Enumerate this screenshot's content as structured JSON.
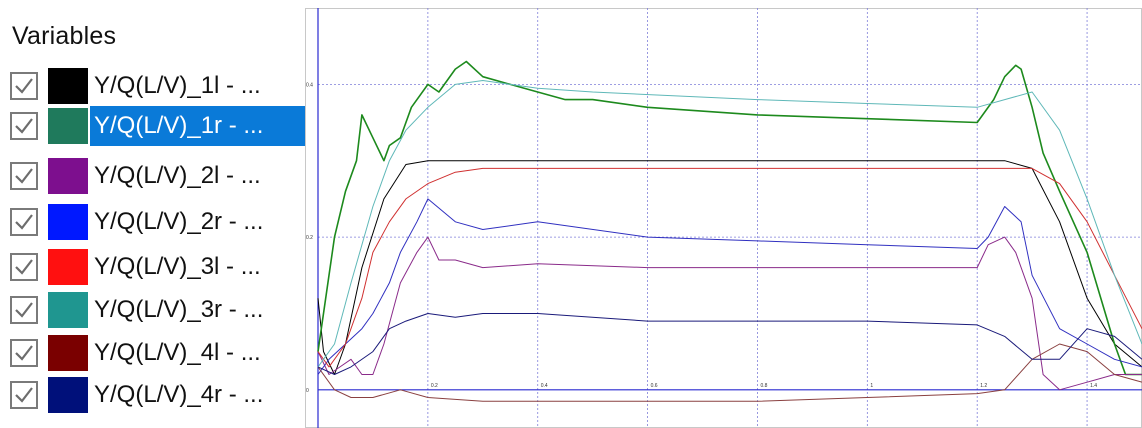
{
  "legend": {
    "title": "Variables",
    "selected_index": 1,
    "items": [
      {
        "label": "Y/Q(L/V)_1l - ...",
        "color": "#000000",
        "checked": true
      },
      {
        "label": "Y/Q(L/V)_1r - ...",
        "color": "#1f7a5c",
        "checked": true
      },
      {
        "label": "Y/Q(L/V)_2l - ...",
        "color": "#7d0f8e",
        "checked": true
      },
      {
        "label": "Y/Q(L/V)_2r - ...",
        "color": "#0018ff",
        "checked": true
      },
      {
        "label": "Y/Q(L/V)_3l - ...",
        "color": "#ff1010",
        "checked": true
      },
      {
        "label": "Y/Q(L/V)_3r - ...",
        "color": "#1f9690",
        "checked": true
      },
      {
        "label": "Y/Q(L/V)_4l - ...",
        "color": "#7a0000",
        "checked": true
      },
      {
        "label": "Y/Q(L/V)_4r - ...",
        "color": "#00107a",
        "checked": true
      }
    ]
  },
  "chart_data": {
    "type": "line",
    "title": "",
    "xlabel": "",
    "ylabel": "",
    "grid": true,
    "xlim": [
      0,
      1.5
    ],
    "ylim": [
      -0.05,
      0.5
    ],
    "x_ticks": [
      "0.2",
      "0.4",
      "0.6",
      "0.8",
      "1",
      "1.2",
      "1.4"
    ],
    "y_ticks": [
      "0",
      "0.2",
      "0.4"
    ],
    "series": [
      {
        "name": "Y/Q(L/V)_1l - ...",
        "color": "#000000",
        "width": 1,
        "x": [
          0,
          0.01,
          0.03,
          0.05,
          0.08,
          0.12,
          0.16,
          0.2,
          0.3,
          0.5,
          0.8,
          1.0,
          1.2,
          1.25,
          1.3,
          1.35,
          1.4,
          1.45,
          1.5
        ],
        "y": [
          0.12,
          0.05,
          0.02,
          0.06,
          0.16,
          0.25,
          0.295,
          0.3,
          0.3,
          0.3,
          0.3,
          0.3,
          0.3,
          0.3,
          0.29,
          0.22,
          0.12,
          0.06,
          0.03
        ]
      },
      {
        "name": "Y/Q(L/V)_1r - ...",
        "color": "#1d8a1d",
        "width": 1.6,
        "x": [
          0,
          0.01,
          0.02,
          0.03,
          0.05,
          0.07,
          0.08,
          0.1,
          0.12,
          0.13,
          0.15,
          0.17,
          0.2,
          0.22,
          0.25,
          0.27,
          0.3,
          0.35,
          0.4,
          0.45,
          0.5,
          0.6,
          0.8,
          1.0,
          1.2,
          1.21,
          1.23,
          1.25,
          1.27,
          1.28,
          1.3,
          1.32,
          1.35,
          1.4,
          1.45,
          1.47,
          1.5
        ],
        "y": [
          0.05,
          0.1,
          0.15,
          0.2,
          0.26,
          0.3,
          0.36,
          0.33,
          0.3,
          0.32,
          0.33,
          0.37,
          0.4,
          0.39,
          0.42,
          0.43,
          0.41,
          0.4,
          0.39,
          0.38,
          0.38,
          0.37,
          0.36,
          0.355,
          0.35,
          0.36,
          0.38,
          0.41,
          0.425,
          0.42,
          0.37,
          0.31,
          0.26,
          0.18,
          0.06,
          0.02,
          0.02
        ]
      },
      {
        "name": "Y/Q(L/V)_2l - ...",
        "color": "#8a2b8a",
        "width": 1,
        "x": [
          0,
          0.02,
          0.04,
          0.06,
          0.08,
          0.1,
          0.12,
          0.15,
          0.18,
          0.2,
          0.22,
          0.25,
          0.3,
          0.4,
          0.6,
          0.8,
          1.0,
          1.2,
          1.22,
          1.25,
          1.27,
          1.3,
          1.32,
          1.35,
          1.4,
          1.45,
          1.5
        ],
        "y": [
          0.05,
          0.02,
          0.03,
          0.04,
          0.02,
          0.02,
          0.06,
          0.14,
          0.18,
          0.2,
          0.17,
          0.17,
          0.16,
          0.165,
          0.16,
          0.16,
          0.16,
          0.16,
          0.19,
          0.2,
          0.18,
          0.12,
          0.02,
          0.0,
          0.01,
          0.02,
          0.02
        ]
      },
      {
        "name": "Y/Q(L/V)_2r - ...",
        "color": "#3030c0",
        "width": 1,
        "x": [
          0,
          0.02,
          0.05,
          0.08,
          0.1,
          0.13,
          0.15,
          0.18,
          0.2,
          0.25,
          0.3,
          0.4,
          0.6,
          0.8,
          1.0,
          1.2,
          1.22,
          1.25,
          1.28,
          1.3,
          1.35,
          1.4,
          1.45,
          1.5
        ],
        "y": [
          0.02,
          0.04,
          0.06,
          0.08,
          0.1,
          0.14,
          0.18,
          0.22,
          0.25,
          0.22,
          0.21,
          0.22,
          0.2,
          0.195,
          0.19,
          0.185,
          0.2,
          0.24,
          0.22,
          0.15,
          0.08,
          0.06,
          0.04,
          0.03
        ]
      },
      {
        "name": "Y/Q(L/V)_3l - ...",
        "color": "#d03030",
        "width": 1,
        "x": [
          0,
          0.02,
          0.05,
          0.08,
          0.1,
          0.13,
          0.16,
          0.2,
          0.25,
          0.3,
          0.4,
          0.6,
          0.8,
          1.0,
          1.2,
          1.25,
          1.3,
          1.35,
          1.4,
          1.45,
          1.5
        ],
        "y": [
          0.05,
          0.03,
          0.06,
          0.12,
          0.18,
          0.22,
          0.25,
          0.27,
          0.285,
          0.29,
          0.29,
          0.29,
          0.29,
          0.29,
          0.29,
          0.29,
          0.29,
          0.27,
          0.22,
          0.15,
          0.08
        ]
      },
      {
        "name": "Y/Q(L/V)_3r - ...",
        "color": "#5fb8b8",
        "width": 1,
        "x": [
          0,
          0.03,
          0.06,
          0.1,
          0.13,
          0.16,
          0.2,
          0.25,
          0.3,
          0.35,
          0.4,
          0.5,
          0.8,
          1.0,
          1.2,
          1.25,
          1.3,
          1.35,
          1.4,
          1.45,
          1.5
        ],
        "y": [
          0.03,
          0.06,
          0.14,
          0.24,
          0.3,
          0.34,
          0.37,
          0.4,
          0.405,
          0.4,
          0.395,
          0.39,
          0.38,
          0.375,
          0.37,
          0.38,
          0.39,
          0.34,
          0.25,
          0.15,
          0.06
        ]
      },
      {
        "name": "Y/Q(L/V)_4l - ...",
        "color": "#8a4040",
        "width": 1,
        "x": [
          0,
          0.03,
          0.06,
          0.1,
          0.15,
          0.2,
          0.3,
          0.5,
          0.8,
          1.0,
          1.2,
          1.25,
          1.3,
          1.35,
          1.4,
          1.45,
          1.5
        ],
        "y": [
          0.03,
          0.0,
          -0.01,
          -0.01,
          0.0,
          -0.01,
          -0.015,
          -0.015,
          -0.015,
          -0.01,
          -0.005,
          0.0,
          0.04,
          0.06,
          0.05,
          0.02,
          0.01
        ]
      },
      {
        "name": "Y/Q(L/V)_4r - ...",
        "color": "#1a1a7a",
        "width": 1,
        "x": [
          0,
          0.03,
          0.06,
          0.1,
          0.13,
          0.16,
          0.2,
          0.25,
          0.3,
          0.4,
          0.6,
          0.8,
          1.0,
          1.2,
          1.25,
          1.3,
          1.35,
          1.4,
          1.45,
          1.5
        ],
        "y": [
          0.03,
          0.02,
          0.03,
          0.05,
          0.08,
          0.09,
          0.1,
          0.095,
          0.1,
          0.1,
          0.09,
          0.09,
          0.09,
          0.085,
          0.07,
          0.04,
          0.04,
          0.08,
          0.07,
          0.04
        ]
      }
    ]
  }
}
